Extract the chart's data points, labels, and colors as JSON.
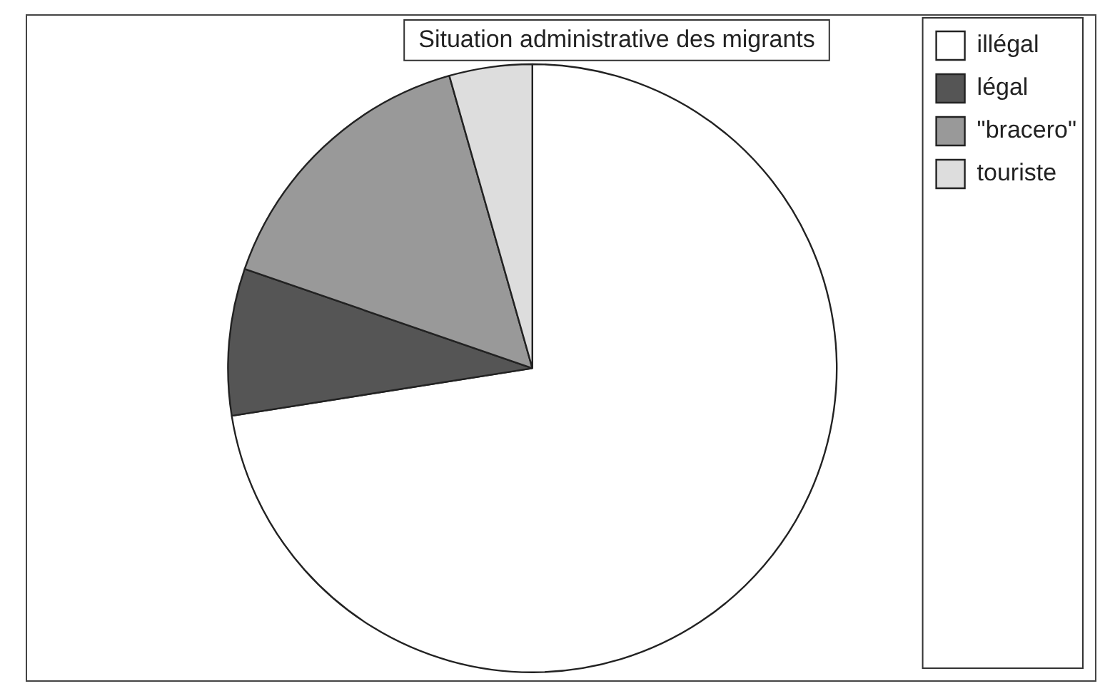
{
  "chart_data": {
    "type": "pie",
    "title": "Situation administrative des migrants",
    "categories": [
      "illégal",
      "légal",
      "\"bracero\"",
      "touriste"
    ],
    "values": [
      72.5,
      7.8,
      15.3,
      4.4
    ],
    "colors": [
      "#ffffff",
      "#555555",
      "#999999",
      "#dddddd"
    ],
    "legend": "top right"
  }
}
